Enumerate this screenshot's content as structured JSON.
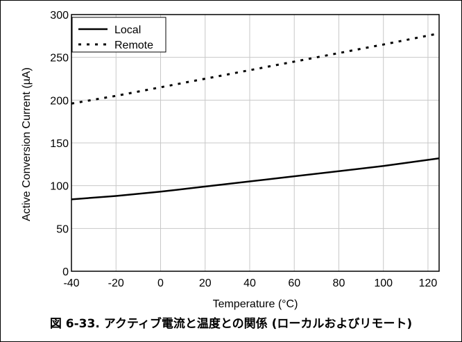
{
  "caption": "図 6-33. アクティブ電流と温度との関係 (ローカルおよびリモート)",
  "chart_data": {
    "type": "line",
    "title": "",
    "xlabel": "Temperature (°C)",
    "ylabel": "Active Conversion Current (µA)",
    "xlim": [
      -40,
      125
    ],
    "ylim": [
      0,
      300
    ],
    "xticks": [
      "-40",
      "-20",
      "0",
      "20",
      "40",
      "60",
      "80",
      "100",
      "120"
    ],
    "yticks": [
      "0",
      "50",
      "100",
      "150",
      "200",
      "250",
      "300"
    ],
    "grid": true,
    "legend_position": "top-left",
    "series": [
      {
        "name": "Local",
        "style": "solid",
        "x": [
          -40,
          -20,
          0,
          20,
          40,
          60,
          80,
          100,
          125
        ],
        "y": [
          84,
          88,
          93,
          99,
          105,
          111,
          117,
          123,
          132
        ]
      },
      {
        "name": "Remote",
        "style": "dotted",
        "x": [
          -40,
          -20,
          0,
          20,
          40,
          60,
          80,
          100,
          125
        ],
        "y": [
          196,
          205,
          215,
          225,
          235,
          245,
          255,
          265,
          278
        ]
      }
    ]
  }
}
